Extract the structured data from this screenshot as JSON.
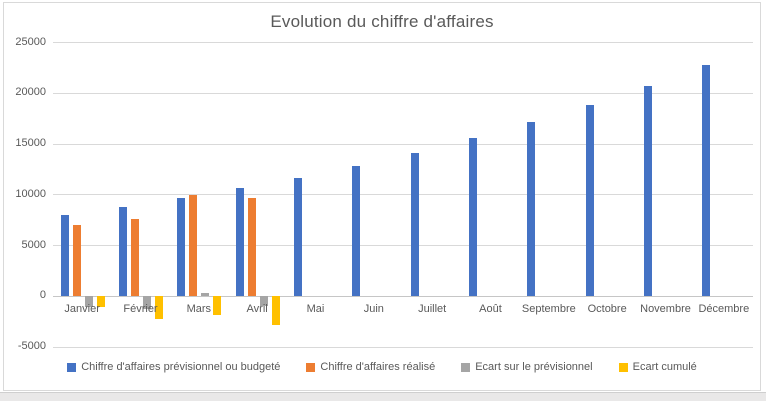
{
  "chart_data": {
    "type": "bar",
    "title": "Evolution du chiffre d'affaires",
    "categories": [
      "Janvier",
      "Février",
      "Mars",
      "Avril",
      "Mai",
      "Juin",
      "Juillet",
      "Août",
      "Septembre",
      "Octobre",
      "Novembre",
      "Décembre"
    ],
    "series": [
      {
        "name": "Chiffre d'affaires prévisionnel ou budgeté",
        "color": "#4472C4",
        "values": [
          8000,
          8800,
          9680,
          10648,
          11713,
          12884,
          14172,
          15590,
          17149,
          18864,
          20750,
          22825
        ]
      },
      {
        "name": "Chiffre d'affaires réalisé",
        "color": "#ED7D31",
        "values": [
          7000,
          7600,
          10000,
          9700,
          null,
          null,
          null,
          null,
          null,
          null,
          null,
          null
        ]
      },
      {
        "name": "Ecart sur le prévisionnel",
        "color": "#A5A5A5",
        "values": [
          -1000,
          -1200,
          320,
          -948,
          null,
          null,
          null,
          null,
          null,
          null,
          null,
          null
        ]
      },
      {
        "name": "Ecart cumulé",
        "color": "#FFC000",
        "values": [
          -1000,
          -2200,
          -1880,
          -2828,
          null,
          null,
          null,
          null,
          null,
          null,
          null,
          null
        ]
      }
    ],
    "yticks": [
      25000,
      20000,
      15000,
      10000,
      5000,
      0,
      -5000
    ],
    "ylim": [
      -5000,
      25000
    ],
    "grid": true,
    "legend_position": "bottom",
    "text_color": "#595959",
    "gridline_color": "#D9D9D9",
    "background_color": "#FFFFFF"
  }
}
